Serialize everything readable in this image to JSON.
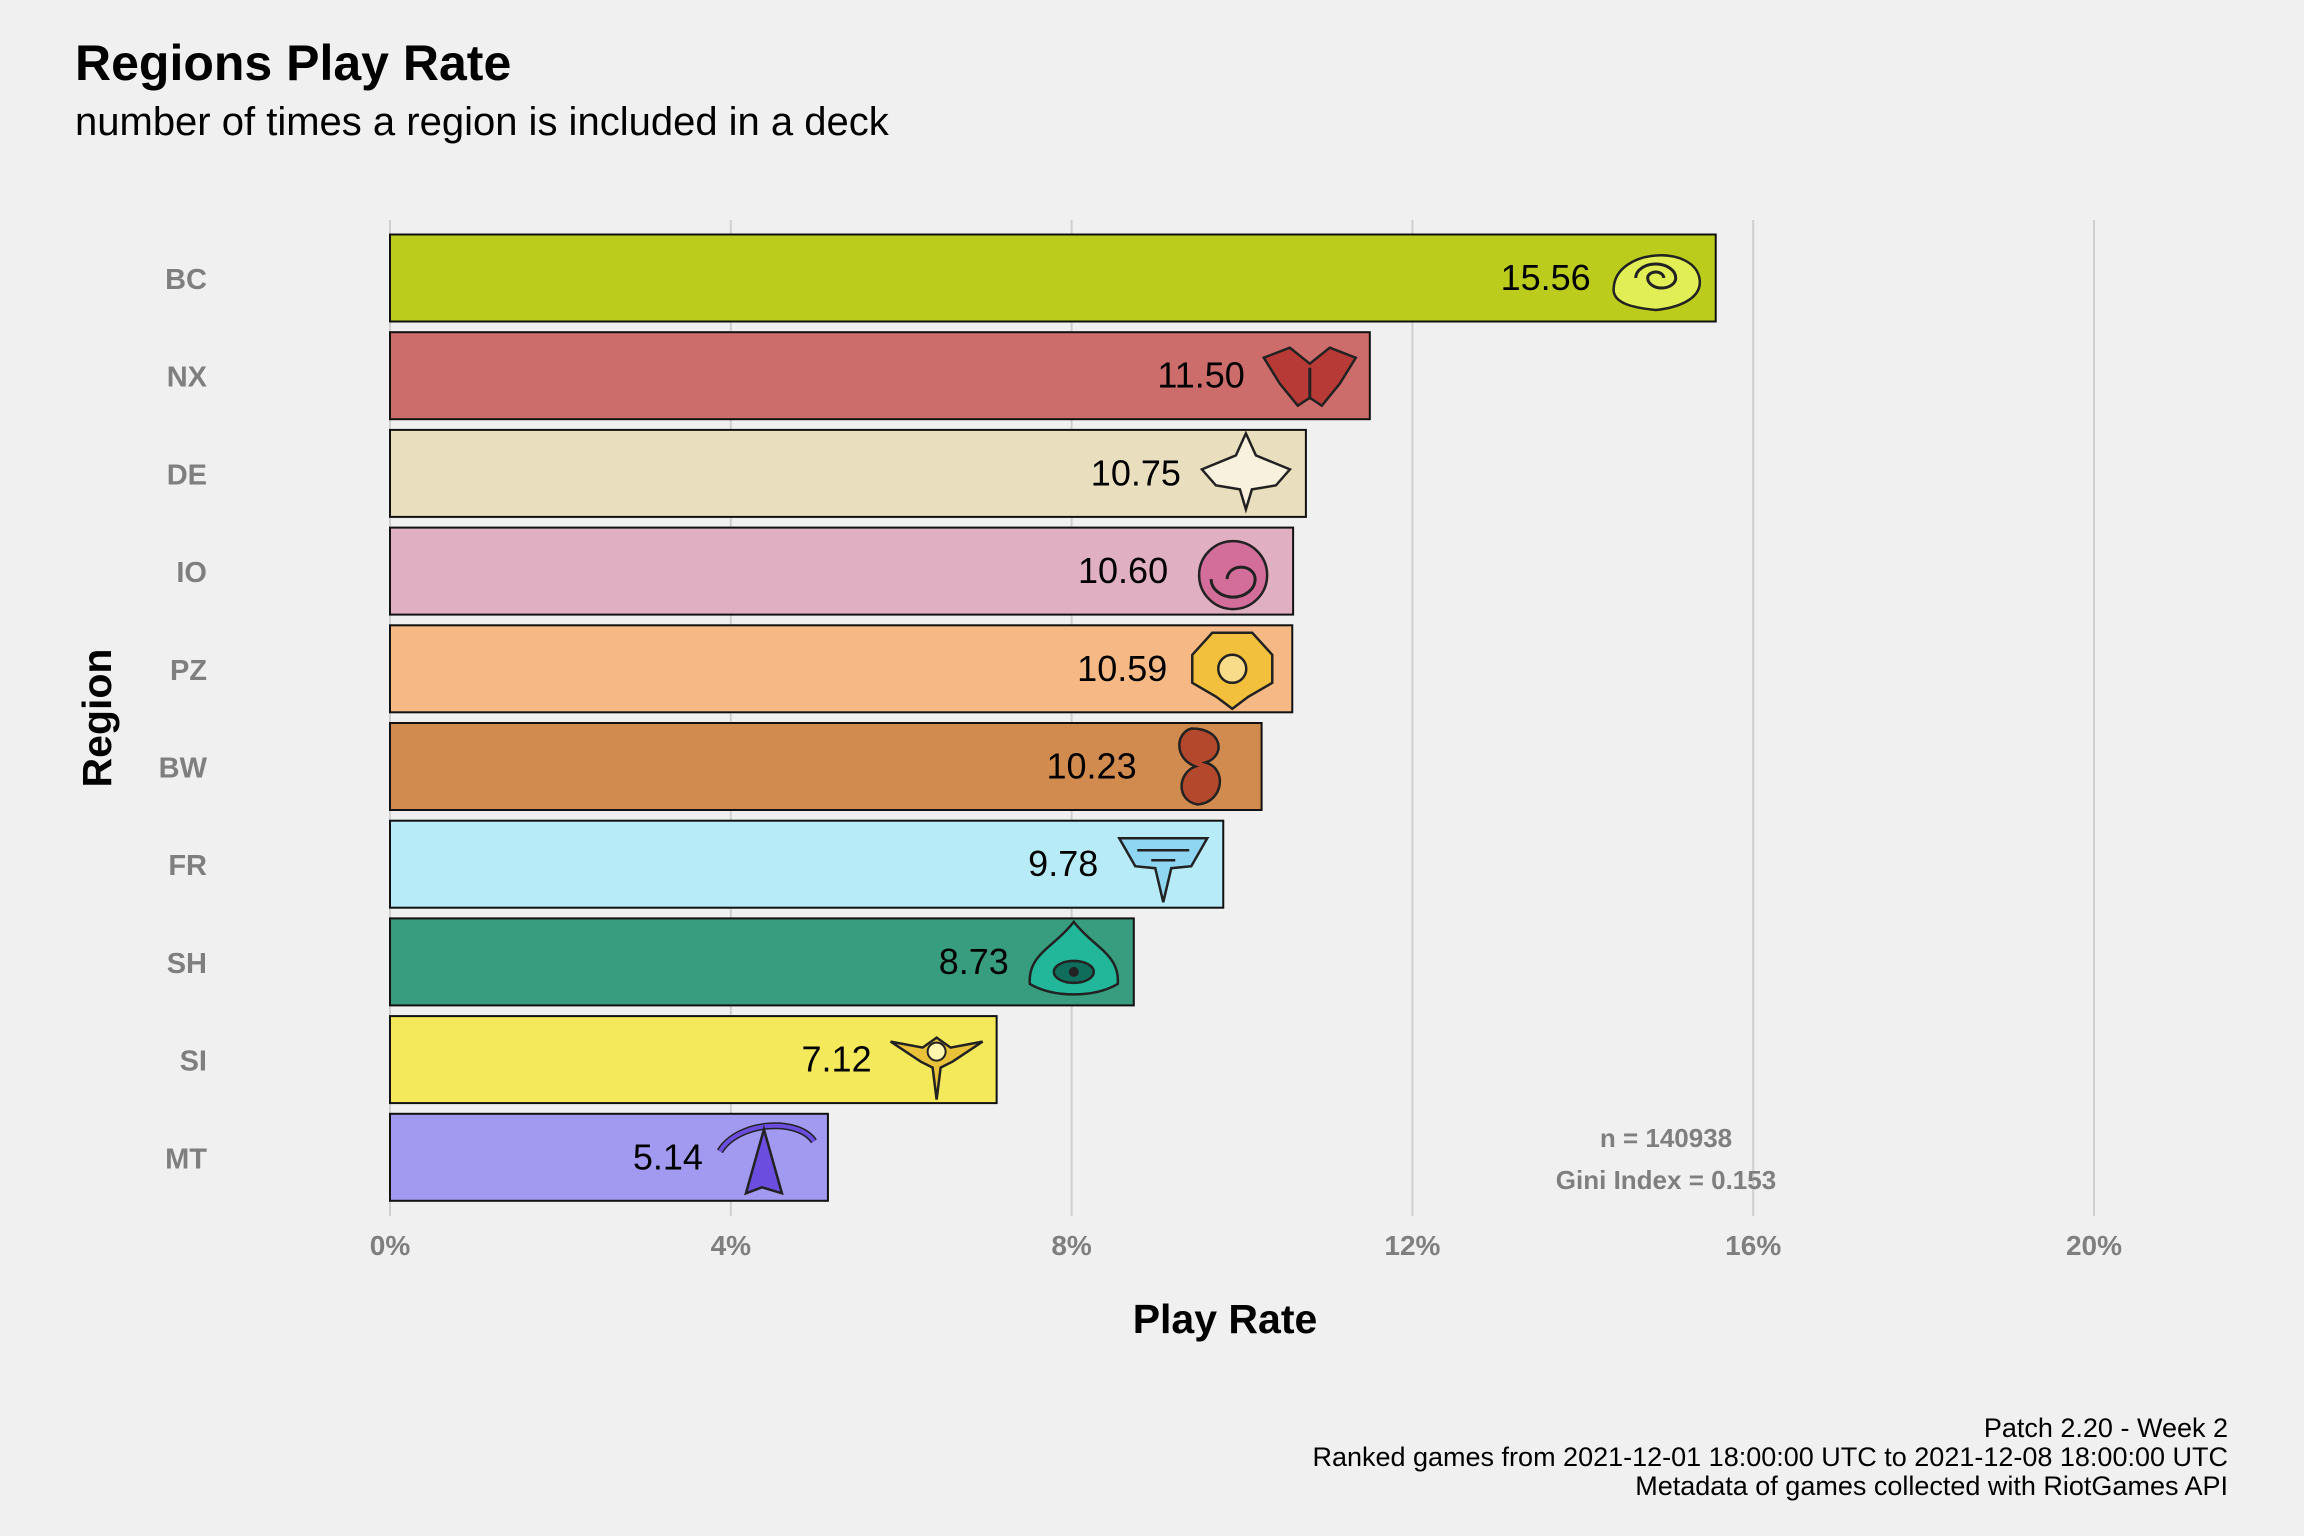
{
  "title": "Regions Play Rate",
  "subtitle": "number of times a region is included in a deck",
  "chart_data": {
    "type": "bar",
    "orientation": "horizontal",
    "categories": [
      "BC",
      "NX",
      "DE",
      "IO",
      "PZ",
      "BW",
      "FR",
      "SH",
      "SI",
      "MT"
    ],
    "values": [
      15.56,
      11.5,
      10.75,
      10.6,
      10.59,
      10.23,
      9.78,
      8.73,
      7.12,
      5.14
    ],
    "value_labels": [
      "15.56",
      "11.50",
      "10.75",
      "10.60",
      "10.59",
      "10.23",
      "9.78",
      "8.73",
      "7.12",
      "5.14"
    ],
    "colors": [
      "#bbcc1c",
      "#cd6d6b",
      "#e9dfbf",
      "#e0afc1",
      "#f6b985",
      "#d18b4f",
      "#b7ebf7",
      "#389d7e",
      "#f3e95a",
      "#a19af0"
    ],
    "icon_colors": [
      "#e2ee55",
      "#b83a36",
      "#f7f1dd",
      "#d36e9a",
      "#f2c03c",
      "#b4482c",
      "#8fd6f2",
      "#22b69a",
      "#e9c23a",
      "#6b4ee0"
    ],
    "icons": [
      "bilgewater-spiral-icon",
      "noxus-helm-icon",
      "demacia-wings-icon",
      "ionia-swirl-icon",
      "piltover-zaun-gear-icon",
      "bandle-city-serpent-icon",
      "freljord-crest-icon",
      "shurima-eye-icon",
      "shadow-isles-sun-icon",
      "mount-targon-peak-icon"
    ],
    "xlabel": "Play Rate",
    "ylabel": "Region",
    "xlim": [
      0,
      20
    ],
    "xticks": [
      0,
      4,
      8,
      12,
      16,
      20
    ],
    "xtick_labels": [
      "0%",
      "4%",
      "8%",
      "12%",
      "16%",
      "20%"
    ],
    "grid": "vertical-major",
    "annotations": [
      "n = 140938",
      "Gini Index = 0.153"
    ]
  },
  "caption": {
    "line1": "Patch 2.20 - Week 2",
    "line2": "Ranked games from 2021-12-01 18:00:00 UTC to 2021-12-08 18:00:00 UTC",
    "line3": "Metadata of games collected with RiotGames API"
  }
}
